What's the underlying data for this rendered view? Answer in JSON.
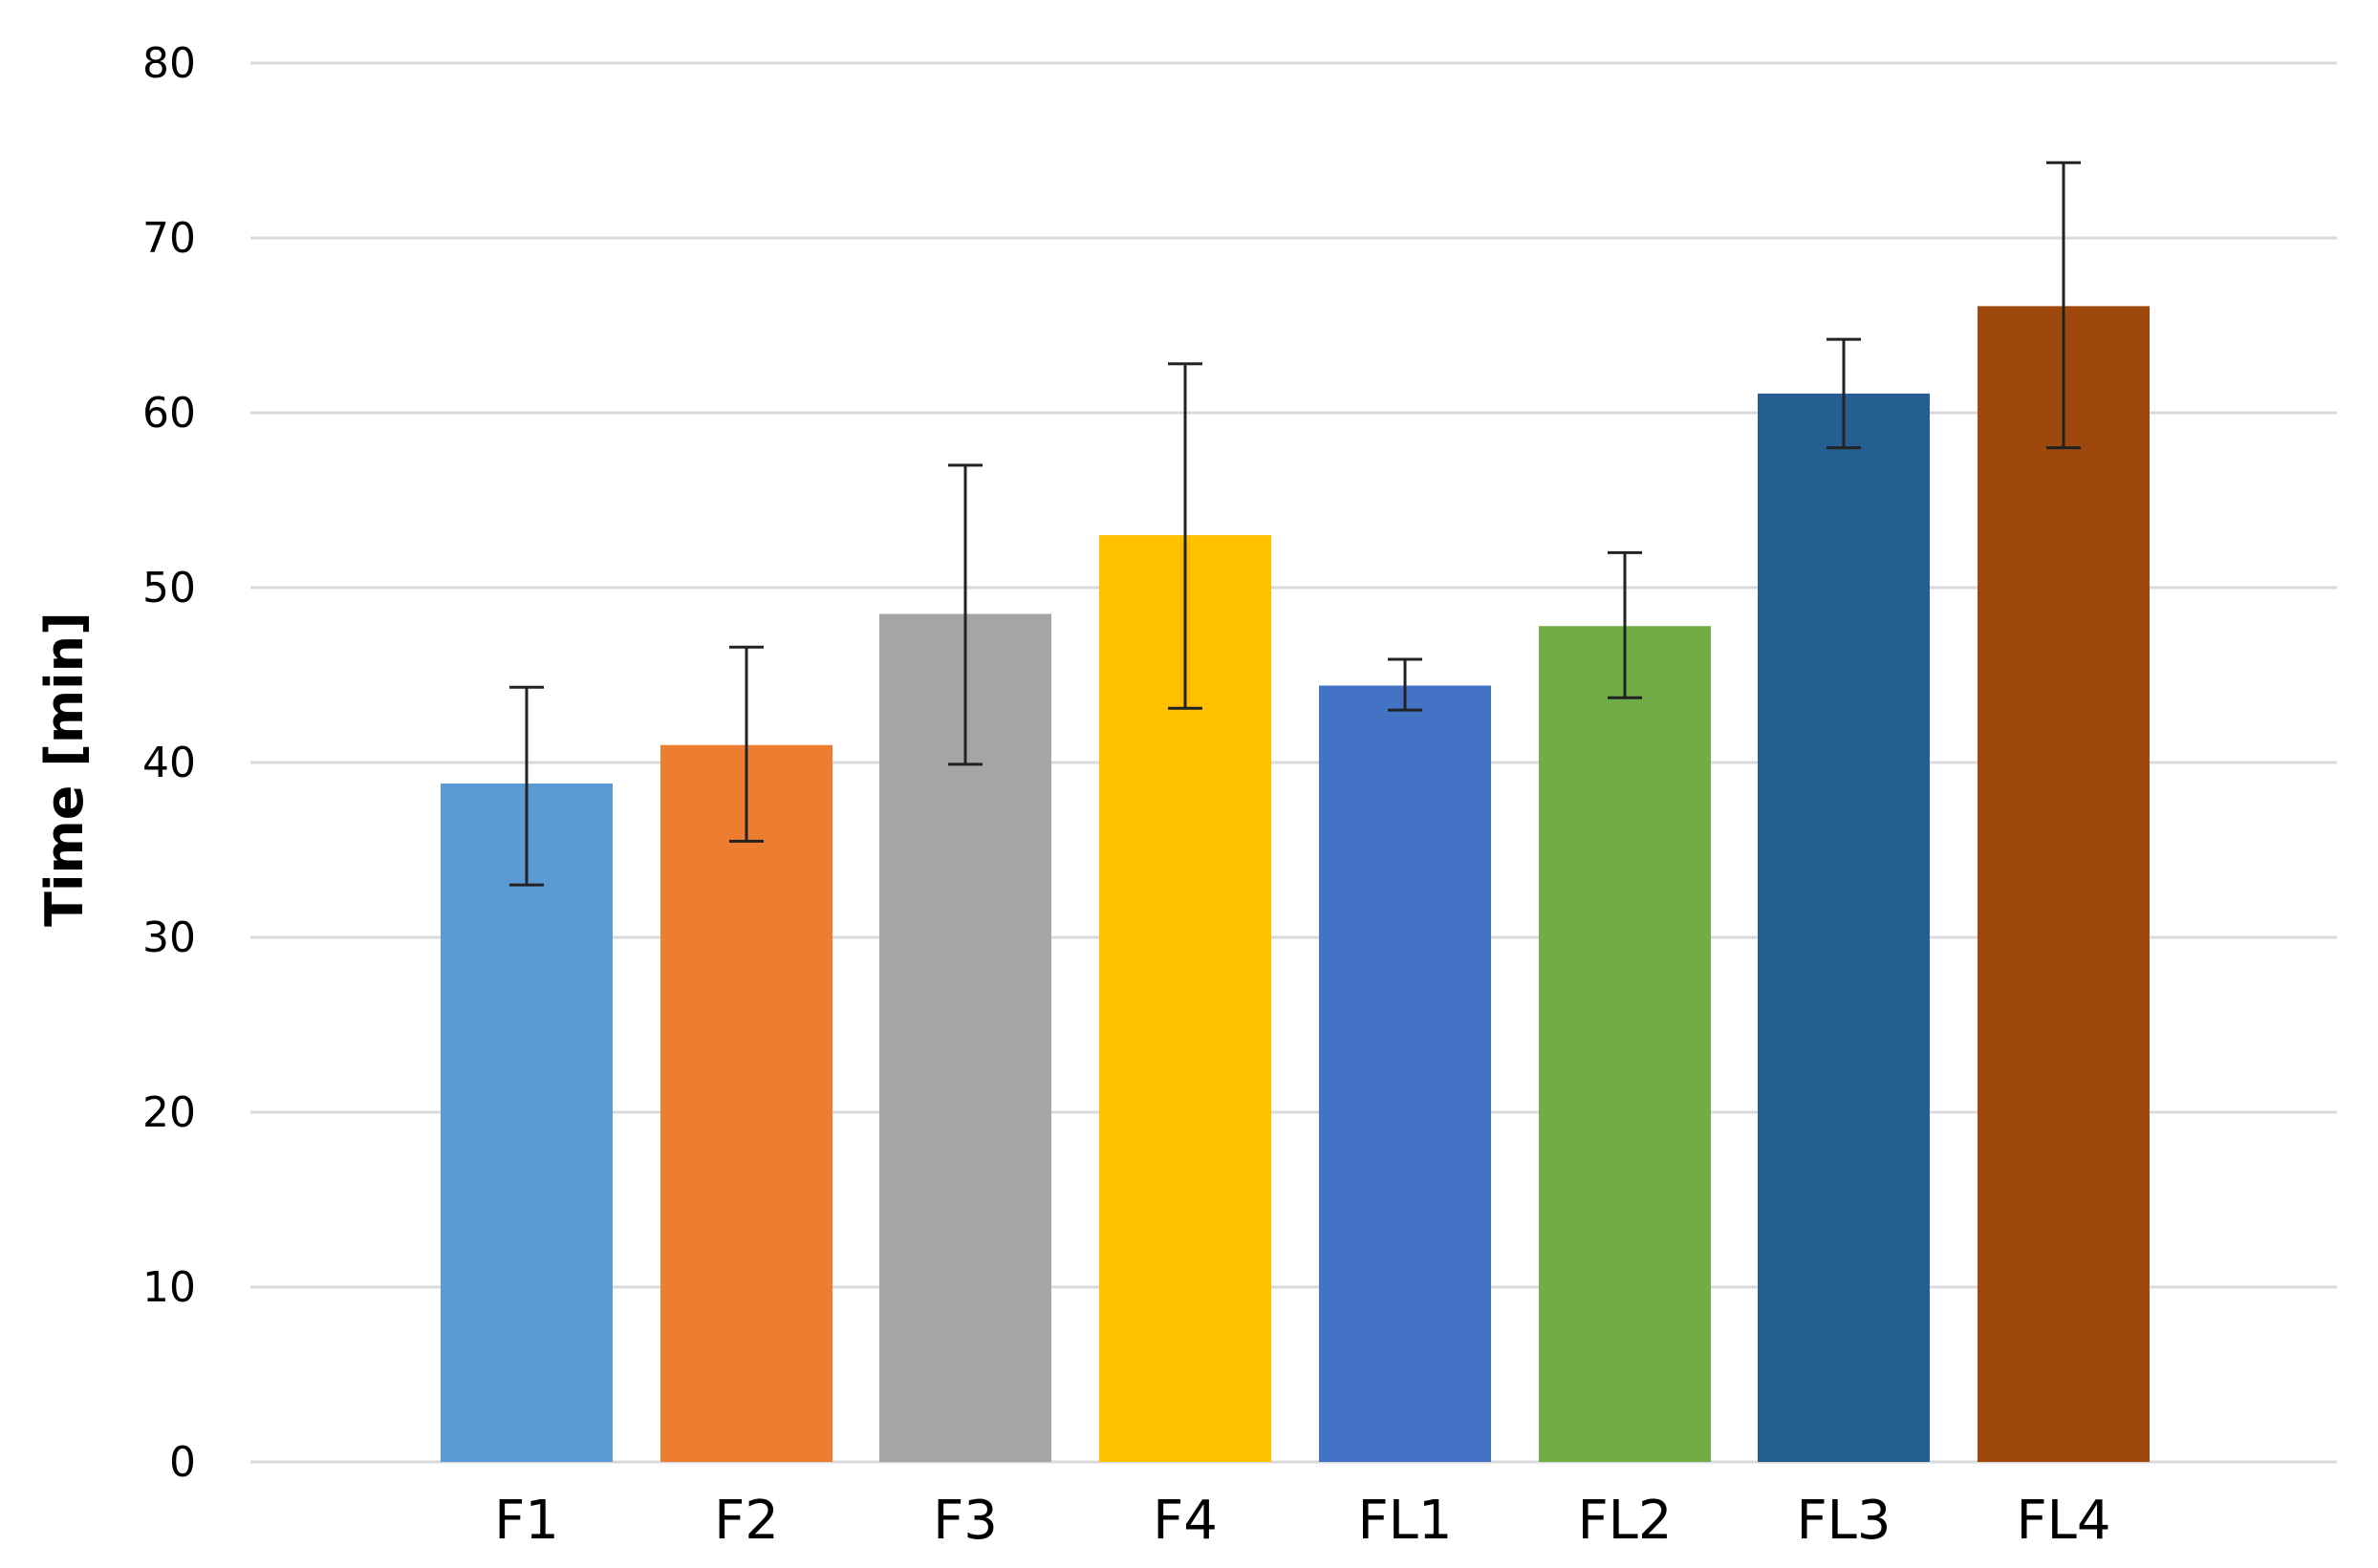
{
  "chart_data": {
    "type": "bar",
    "title": "",
    "xlabel": "",
    "ylabel": "Time [min]",
    "ylim": [
      0,
      80
    ],
    "yticks": [
      0,
      10,
      20,
      30,
      40,
      50,
      60,
      70,
      80
    ],
    "grid": true,
    "legend": "none",
    "categories": [
      "F1",
      "F2",
      "F3",
      "F4",
      "FL1",
      "FL2",
      "FL3",
      "FL4"
    ],
    "values": [
      38.8,
      41.0,
      48.5,
      53.0,
      44.4,
      47.8,
      61.1,
      66.1
    ],
    "error_upper": [
      44.3,
      46.6,
      57.0,
      62.8,
      45.9,
      52.0,
      64.2,
      74.3
    ],
    "error_lower": [
      33.0,
      35.5,
      39.9,
      43.1,
      43.0,
      43.7,
      58.0,
      58.0
    ],
    "colors": [
      "#5b9bd5",
      "#ed7d31",
      "#a5a5a5",
      "#ffc000",
      "#4472c4",
      "#70ad47",
      "#255e91",
      "#9e480e"
    ]
  }
}
